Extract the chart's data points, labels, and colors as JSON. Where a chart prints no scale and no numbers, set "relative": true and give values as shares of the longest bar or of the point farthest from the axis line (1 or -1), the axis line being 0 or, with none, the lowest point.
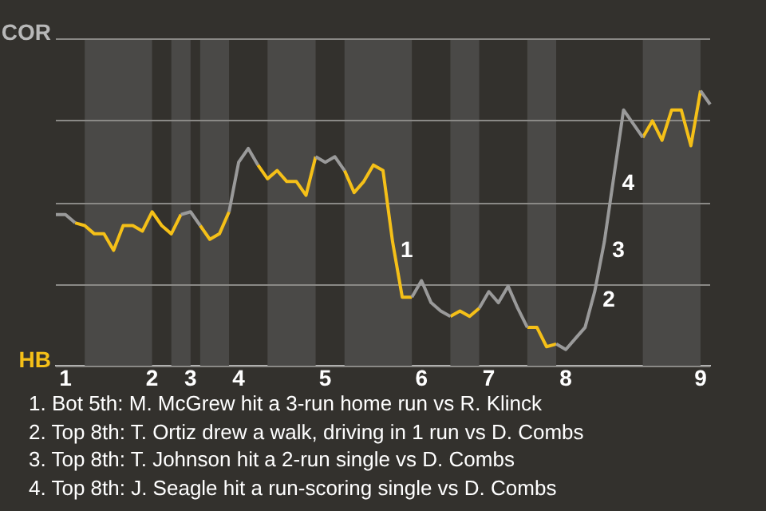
{
  "chart_data": {
    "type": "line",
    "relative": true,
    "categories": [
      null,
      "1",
      null,
      null,
      null,
      null,
      null,
      null,
      null,
      null,
      "2",
      null,
      null,
      null,
      "3",
      null,
      null,
      null,
      null,
      "4",
      null,
      null,
      null,
      null,
      null,
      null,
      null,
      null,
      "5",
      null,
      null,
      null,
      null,
      null,
      null,
      null,
      null,
      null,
      "6",
      null,
      null,
      null,
      null,
      null,
      null,
      "7",
      null,
      null,
      null,
      null,
      null,
      null,
      null,
      "8",
      null,
      null,
      null,
      null,
      null,
      null,
      null,
      null,
      null,
      null,
      null,
      null,
      null,
      "9",
      null
    ],
    "series": [
      {
        "color": "#9a9a9a",
        "values": [
          0.55,
          0.55,
          0.52,
          null,
          null,
          null,
          null,
          null,
          null,
          null,
          null,
          null,
          null,
          0.55,
          0.56,
          0.51,
          null,
          null,
          0.56,
          0.74,
          0.79,
          0.73,
          null,
          null,
          null,
          null,
          null,
          0.76,
          0.74,
          0.76,
          0.71,
          null,
          null,
          null,
          null,
          null,
          null,
          0.25,
          0.31,
          0.23,
          0.2,
          0.18,
          null,
          null,
          0.21,
          0.27,
          0.23,
          0.29,
          0.21,
          0.14,
          null,
          null,
          0.08,
          0.06,
          0.1,
          0.14,
          0.27,
          0.45,
          0.69,
          0.93,
          0.88,
          0.83,
          null,
          null,
          null,
          null,
          null,
          1,
          0.95
        ]
      },
      {
        "color": "#f5c018",
        "values": [
          null,
          null,
          0.52,
          0.51,
          0.48,
          0.48,
          0.42,
          0.51,
          0.51,
          0.49,
          0.56,
          0.51,
          0.48,
          0.55,
          null,
          0.51,
          0.46,
          0.48,
          0.56,
          null,
          null,
          0.73,
          0.68,
          0.71,
          0.67,
          0.67,
          0.62,
          0.76,
          null,
          null,
          0.71,
          0.63,
          0.67,
          0.73,
          0.71,
          0.45,
          0.25,
          0.25,
          null,
          null,
          null,
          0.18,
          0.2,
          0.18,
          0.21,
          null,
          null,
          null,
          null,
          0.14,
          0.14,
          0.07,
          0.08,
          null,
          null,
          null,
          null,
          null,
          null,
          null,
          null,
          0.83,
          0.89,
          0.82,
          0.93,
          0.93,
          0.8,
          1,
          null
        ]
      }
    ],
    "grid": "y",
    "marker": "none",
    "line_style": "solid",
    "legend": false,
    "annotations": [
      "COR",
      "HB",
      "1",
      "2",
      "3",
      "4",
      "1. Bot 5th: M. McGrew hit a 3-run home run vs R. Klinck",
      "2. Top 8th: T. Ortiz drew a walk, driving in 1 run vs D. Combs",
      "3. Top 8th: T. Johnson hit a 2-run single vs D. Combs",
      "4. Top 8th: J. Seagle hit a run-scoring single vs D. Combs"
    ]
  }
}
